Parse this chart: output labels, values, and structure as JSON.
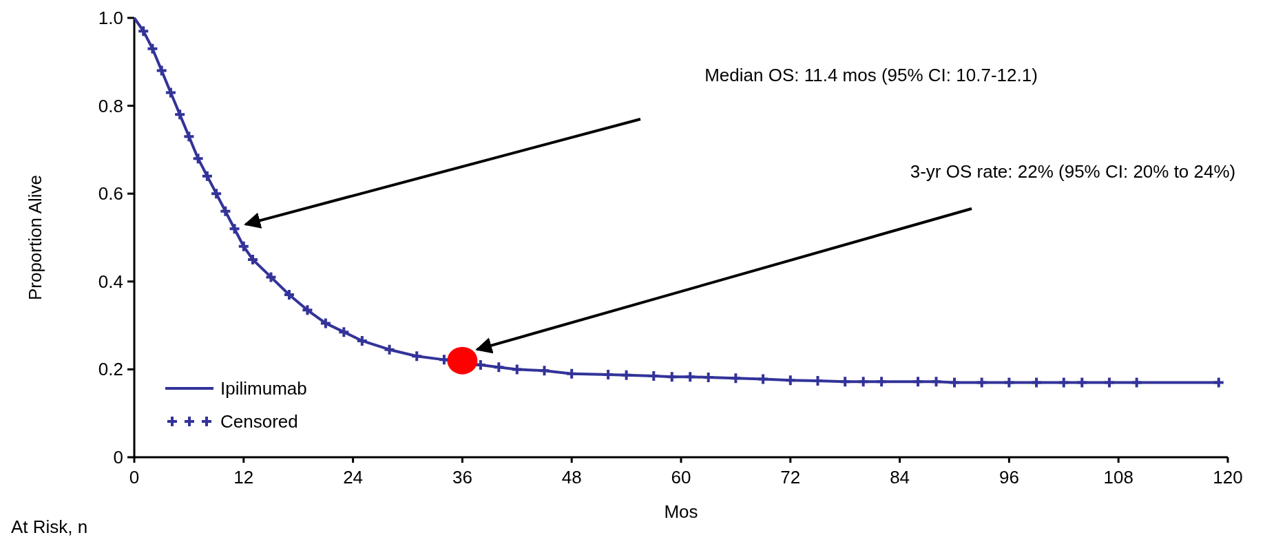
{
  "chart_data": {
    "type": "line",
    "xlabel": "Mos",
    "ylabel": "Proportion Alive",
    "xlim": [
      0,
      120
    ],
    "ylim": [
      0,
      1
    ],
    "xticks": [
      0,
      12,
      24,
      36,
      48,
      60,
      72,
      84,
      96,
      108,
      120
    ],
    "yticks": [
      {
        "value": 0,
        "label": "0"
      },
      {
        "value": 0.2,
        "label": "0.2"
      },
      {
        "value": 0.4,
        "label": "0.4"
      },
      {
        "value": 0.6,
        "label": "0.6"
      },
      {
        "value": 0.8,
        "label": "0.8"
      },
      {
        "value": 1,
        "label": "1.0"
      }
    ],
    "grid": false,
    "legend": "bottom left",
    "series": [
      {
        "name": "Ipilimumab",
        "type": "line",
        "color": "#333399",
        "marker": "none",
        "x": [
          0,
          1,
          2,
          3,
          4,
          5,
          6,
          7,
          8,
          9,
          10,
          11,
          12,
          13,
          15,
          17,
          19,
          21,
          23,
          25,
          28,
          31,
          34,
          38,
          40,
          42,
          45,
          48,
          52,
          54,
          57,
          59,
          61,
          63,
          66,
          69,
          72,
          75,
          78,
          80,
          82,
          84,
          86,
          88,
          90,
          93,
          96,
          99,
          102,
          104,
          107,
          110,
          119
        ],
        "values": [
          1,
          0.97,
          0.93,
          0.88,
          0.83,
          0.78,
          0.73,
          0.68,
          0.64,
          0.6,
          0.56,
          0.52,
          0.48,
          0.45,
          0.41,
          0.37,
          0.335,
          0.305,
          0.285,
          0.265,
          0.245,
          0.23,
          0.222,
          0.21,
          0.205,
          0.2,
          0.197,
          0.19,
          0.188,
          0.187,
          0.185,
          0.183,
          0.183,
          0.182,
          0.18,
          0.178,
          0.175,
          0.174,
          0.172,
          0.172,
          0.172,
          0.172,
          0.172,
          0.172,
          0.17,
          0.17,
          0.17,
          0.17,
          0.17,
          0.17,
          0.17,
          0.17,
          0.17
        ]
      },
      {
        "name": "Censored",
        "type": "scatter",
        "color": "#333399",
        "marker": "cross",
        "x": [
          1,
          2,
          3,
          4,
          5,
          6,
          7,
          8,
          9,
          10,
          11,
          12,
          13,
          15,
          17,
          19,
          21,
          23,
          25,
          28,
          31,
          34,
          38,
          40,
          42,
          45,
          48,
          52,
          54,
          57,
          59,
          61,
          63,
          66,
          69,
          72,
          75,
          78,
          80,
          82,
          86,
          88,
          90,
          93,
          96,
          99,
          102,
          104,
          107,
          110,
          119
        ],
        "values": [
          0.97,
          0.93,
          0.88,
          0.83,
          0.78,
          0.73,
          0.68,
          0.64,
          0.6,
          0.56,
          0.52,
          0.48,
          0.45,
          0.41,
          0.37,
          0.335,
          0.305,
          0.285,
          0.265,
          0.245,
          0.23,
          0.222,
          0.21,
          0.205,
          0.2,
          0.197,
          0.19,
          0.188,
          0.187,
          0.185,
          0.183,
          0.183,
          0.182,
          0.18,
          0.178,
          0.175,
          0.174,
          0.172,
          0.172,
          0.172,
          0.172,
          0.172,
          0.17,
          0.17,
          0.17,
          0.17,
          0.17,
          0.17,
          0.17,
          0.17,
          0.17
        ]
      },
      {
        "type": "scatter",
        "color": "#ff0000",
        "marker": "circle",
        "x": [
          36
        ],
        "values": [
          0.22
        ]
      }
    ],
    "annotations": [
      "Median OS: 11.4 mos (95% CI: 10.7-12.1)",
      "3-yr OS rate: 22% (95% CI: 20% to 24%)",
      "At Risk, n"
    ]
  }
}
